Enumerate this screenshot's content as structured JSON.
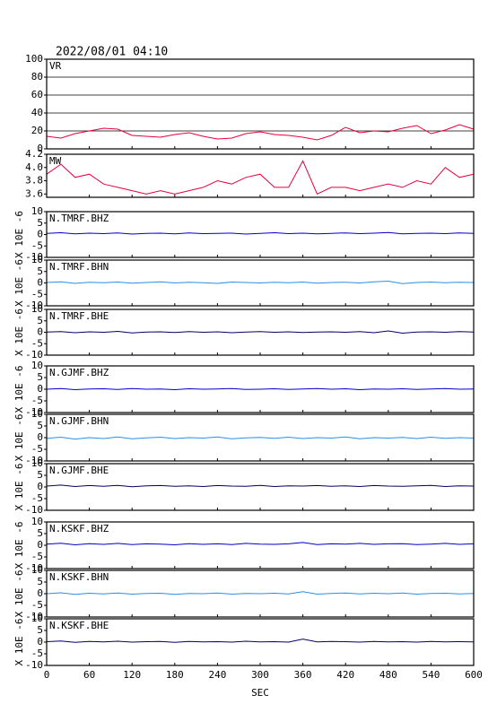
{
  "chart_data": {
    "type": "line",
    "title": "2022/08/01 04:10",
    "xlabel": "SEC",
    "xlim": [
      0,
      600
    ],
    "xticks": [
      0,
      60,
      120,
      180,
      240,
      300,
      360,
      420,
      480,
      540,
      600
    ],
    "x": [
      0,
      20,
      40,
      60,
      80,
      100,
      120,
      140,
      160,
      180,
      200,
      220,
      240,
      260,
      280,
      300,
      320,
      340,
      360,
      380,
      400,
      420,
      440,
      460,
      480,
      500,
      520,
      540,
      560,
      580,
      600
    ],
    "panels": [
      {
        "label": "VR",
        "color": "#e8003c",
        "ylim": [
          0,
          100
        ],
        "yticks": [
          0,
          20,
          40,
          60,
          80,
          100
        ],
        "grid": true,
        "values": [
          14,
          12,
          17,
          20,
          23,
          22,
          15,
          14,
          13,
          16,
          18,
          14,
          11,
          12,
          17,
          19,
          16,
          15,
          13,
          10,
          15,
          24,
          18,
          20,
          19,
          23,
          26,
          17,
          21,
          27,
          22
        ]
      },
      {
        "label": "MW",
        "color": "#e8003c",
        "ylim": [
          3.55,
          4.2
        ],
        "yticks": [
          3.6,
          3.8,
          {
            "value": 4,
            "label": "4.0"
          },
          4.2
        ],
        "grid": false,
        "values": [
          3.9,
          4.05,
          3.85,
          3.9,
          3.75,
          3.7,
          3.65,
          3.6,
          3.65,
          3.6,
          3.65,
          3.7,
          3.8,
          3.75,
          3.85,
          3.9,
          3.7,
          3.7,
          4.1,
          3.6,
          3.7,
          3.7,
          3.65,
          3.7,
          3.75,
          3.7,
          3.8,
          3.75,
          4.0,
          3.85,
          3.9
        ]
      },
      {
        "label": "N.TMRF.BHZ",
        "ylabel": "X 10E -6",
        "color": "#0000cc",
        "ylim": [
          -10,
          10
        ],
        "yticks": [
          -10,
          -5,
          0,
          5,
          10
        ],
        "grid": false,
        "values": [
          0.5,
          0.8,
          0.3,
          0.6,
          0.4,
          0.7,
          0.2,
          0.5,
          0.6,
          0.3,
          0.7,
          0.4,
          0.5,
          0.6,
          0.2,
          0.5,
          0.8,
          0.4,
          0.6,
          0.3,
          0.5,
          0.7,
          0.4,
          0.6,
          0.9,
          0.3,
          0.5,
          0.6,
          0.4,
          0.7,
          0.5
        ]
      },
      {
        "label": "N.TMRF.BHN",
        "ylabel": "X 10E -6",
        "color": "#2a8ee8",
        "ylim": [
          -10,
          10
        ],
        "yticks": [
          -10,
          -5,
          0,
          5,
          10
        ],
        "grid": false,
        "values": [
          0.2,
          0.5,
          -0.2,
          0.3,
          0.1,
          0.4,
          -0.1,
          0.2,
          0.5,
          0,
          0.3,
          0.1,
          -0.2,
          0.4,
          0.2,
          0,
          0.3,
          0.1,
          0.4,
          -0.1,
          0.2,
          0.3,
          0,
          0.5,
          0.8,
          -0.3,
          0.2,
          0.4,
          0.1,
          0.3,
          0.2
        ]
      },
      {
        "label": "N.TMRF.BHE",
        "ylabel": "X 10E -6",
        "color": "#000066",
        "ylim": [
          -10,
          10
        ],
        "yticks": [
          -10,
          -5,
          0,
          5,
          10
        ],
        "grid": false,
        "values": [
          0.1,
          0.3,
          -0.2,
          0.2,
          0,
          0.4,
          -0.3,
          0.1,
          0.2,
          -0.1,
          0.3,
          0,
          0.2,
          -0.2,
          0.1,
          0.3,
          0,
          0.2,
          -0.1,
          0.1,
          0.2,
          0,
          0.3,
          -0.2,
          0.6,
          -0.4,
          0.1,
          0.2,
          0,
          0.3,
          0.1
        ]
      },
      {
        "label": "N.GJMF.BHZ",
        "ylabel": "X 10E -6",
        "color": "#0000cc",
        "ylim": [
          -10,
          10
        ],
        "yticks": [
          -10,
          -5,
          0,
          5,
          10
        ],
        "grid": false,
        "values": [
          0,
          0.3,
          -0.2,
          0.1,
          0.2,
          -0.1,
          0.3,
          0,
          0.1,
          -0.2,
          0.2,
          0,
          0.1,
          0.3,
          -0.1,
          0,
          0.2,
          -0.1,
          0.1,
          0.3,
          0,
          0.2,
          -0.2,
          0.1,
          0,
          0.2,
          -0.1,
          0.1,
          0.3,
          0,
          0.1
        ]
      },
      {
        "label": "N.GJMF.BHN",
        "ylabel": "X 10E -6",
        "color": "#2a8ee8",
        "ylim": [
          -10,
          10
        ],
        "yticks": [
          -10,
          -5,
          0,
          5,
          10
        ],
        "grid": false,
        "values": [
          -0.3,
          0.2,
          -0.6,
          0,
          -0.4,
          0.3,
          -0.5,
          -0.1,
          0.2,
          -0.4,
          0,
          -0.2,
          0.3,
          -0.5,
          -0.1,
          0.1,
          -0.3,
          0.2,
          -0.4,
          0,
          -0.2,
          0.3,
          -0.5,
          0,
          -0.2,
          0.1,
          -0.4,
          0.2,
          -0.3,
          0,
          -0.2
        ]
      },
      {
        "label": "N.GJMF.BHE",
        "ylabel": "X 10E -6",
        "color": "#000066",
        "ylim": [
          -10,
          10
        ],
        "yticks": [
          -10,
          -5,
          0,
          5,
          10
        ],
        "grid": false,
        "values": [
          0.4,
          0.8,
          0.2,
          0.6,
          0.3,
          0.7,
          0.1,
          0.5,
          0.6,
          0.3,
          0.5,
          0.2,
          0.6,
          0.4,
          0.3,
          0.7,
          0.2,
          0.5,
          0.4,
          0.6,
          0.3,
          0.5,
          0.2,
          0.6,
          0.4,
          0.3,
          0.5,
          0.7,
          0.2,
          0.5,
          0.4
        ]
      },
      {
        "label": "N.KSKF.BHZ",
        "ylabel": "X 10E -6",
        "color": "#0000cc",
        "ylim": [
          -10,
          10
        ],
        "yticks": [
          -10,
          -5,
          0,
          5,
          10
        ],
        "grid": false,
        "values": [
          0.5,
          0.9,
          0.2,
          0.7,
          0.4,
          0.8,
          0.3,
          0.6,
          0.5,
          0.2,
          0.7,
          0.4,
          0.6,
          0.3,
          0.8,
          0.5,
          0.4,
          0.6,
          1.2,
          0.3,
          0.6,
          0.5,
          0.8,
          0.4,
          0.6,
          0.7,
          0.3,
          0.5,
          0.8,
          0.4,
          0.6
        ]
      },
      {
        "label": "N.KSKF.BHN",
        "ylabel": "X 10E -6",
        "color": "#2a8ee8",
        "ylim": [
          -10,
          10
        ],
        "yticks": [
          -10,
          -5,
          0,
          5,
          10
        ],
        "grid": false,
        "values": [
          0,
          0.4,
          -0.3,
          0.2,
          -0.1,
          0.3,
          -0.2,
          0.1,
          0.2,
          -0.3,
          0.1,
          0,
          0.3,
          -0.2,
          0.1,
          0,
          0.2,
          -0.1,
          0.9,
          -0.2,
          0.1,
          0.3,
          -0.1,
          0.2,
          0,
          0.3,
          -0.2,
          0.1,
          0.2,
          -0.1,
          0.1
        ]
      },
      {
        "label": "N.KSKF.BHE",
        "ylabel": "X 10E -6",
        "color": "#000066",
        "ylim": [
          -10,
          10
        ],
        "yticks": [
          -10,
          -5,
          0,
          5,
          10
        ],
        "grid": false,
        "values": [
          0.2,
          0.5,
          -0.1,
          0.3,
          0.1,
          0.4,
          0,
          0.2,
          0.3,
          -0.1,
          0.3,
          0.1,
          0.2,
          0,
          0.4,
          0.1,
          0.2,
          0,
          1.3,
          0.1,
          0.3,
          0.2,
          0,
          0.3,
          0.1,
          0.2,
          0,
          0.3,
          0.1,
          0.2,
          0.1
        ]
      }
    ]
  }
}
